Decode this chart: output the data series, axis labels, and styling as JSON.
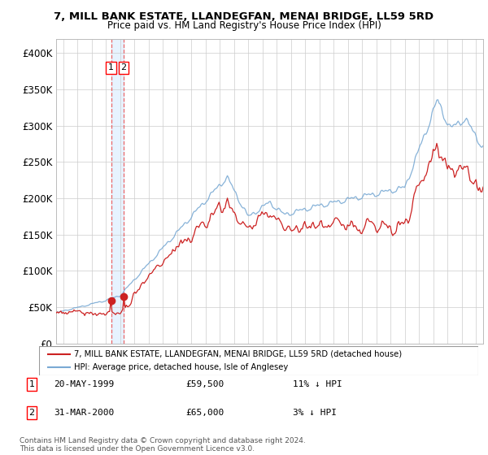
{
  "title": "7, MILL BANK ESTATE, LLANDEGFAN, MENAI BRIDGE, LL59 5RD",
  "subtitle": "Price paid vs. HM Land Registry's House Price Index (HPI)",
  "ylim": [
    0,
    420000
  ],
  "yticks": [
    0,
    50000,
    100000,
    150000,
    200000,
    250000,
    300000,
    350000,
    400000
  ],
  "hpi_color": "#7aaad4",
  "price_color": "#cc2222",
  "dashed_color": "#ee4444",
  "shade_color": "#ddeeff",
  "sale1_x": 1999.37,
  "sale1_y": 59500,
  "sale2_x": 2000.25,
  "sale2_y": 65000,
  "sale_annotations": [
    {
      "label": "1",
      "date": "20-MAY-1999",
      "price": "£59,500",
      "relation": "11% ↓ HPI"
    },
    {
      "label": "2",
      "date": "31-MAR-2000",
      "price": "£65,000",
      "relation": "3% ↓ HPI"
    }
  ],
  "legend_line1": "7, MILL BANK ESTATE, LLANDEGFAN, MENAI BRIDGE, LL59 5RD (detached house)",
  "legend_line2": "HPI: Average price, detached house, Isle of Anglesey",
  "footnote": "Contains HM Land Registry data © Crown copyright and database right 2024.\nThis data is licensed under the Open Government Licence v3.0.",
  "xlim_left": 1995.5,
  "xlim_right": 2025.5
}
